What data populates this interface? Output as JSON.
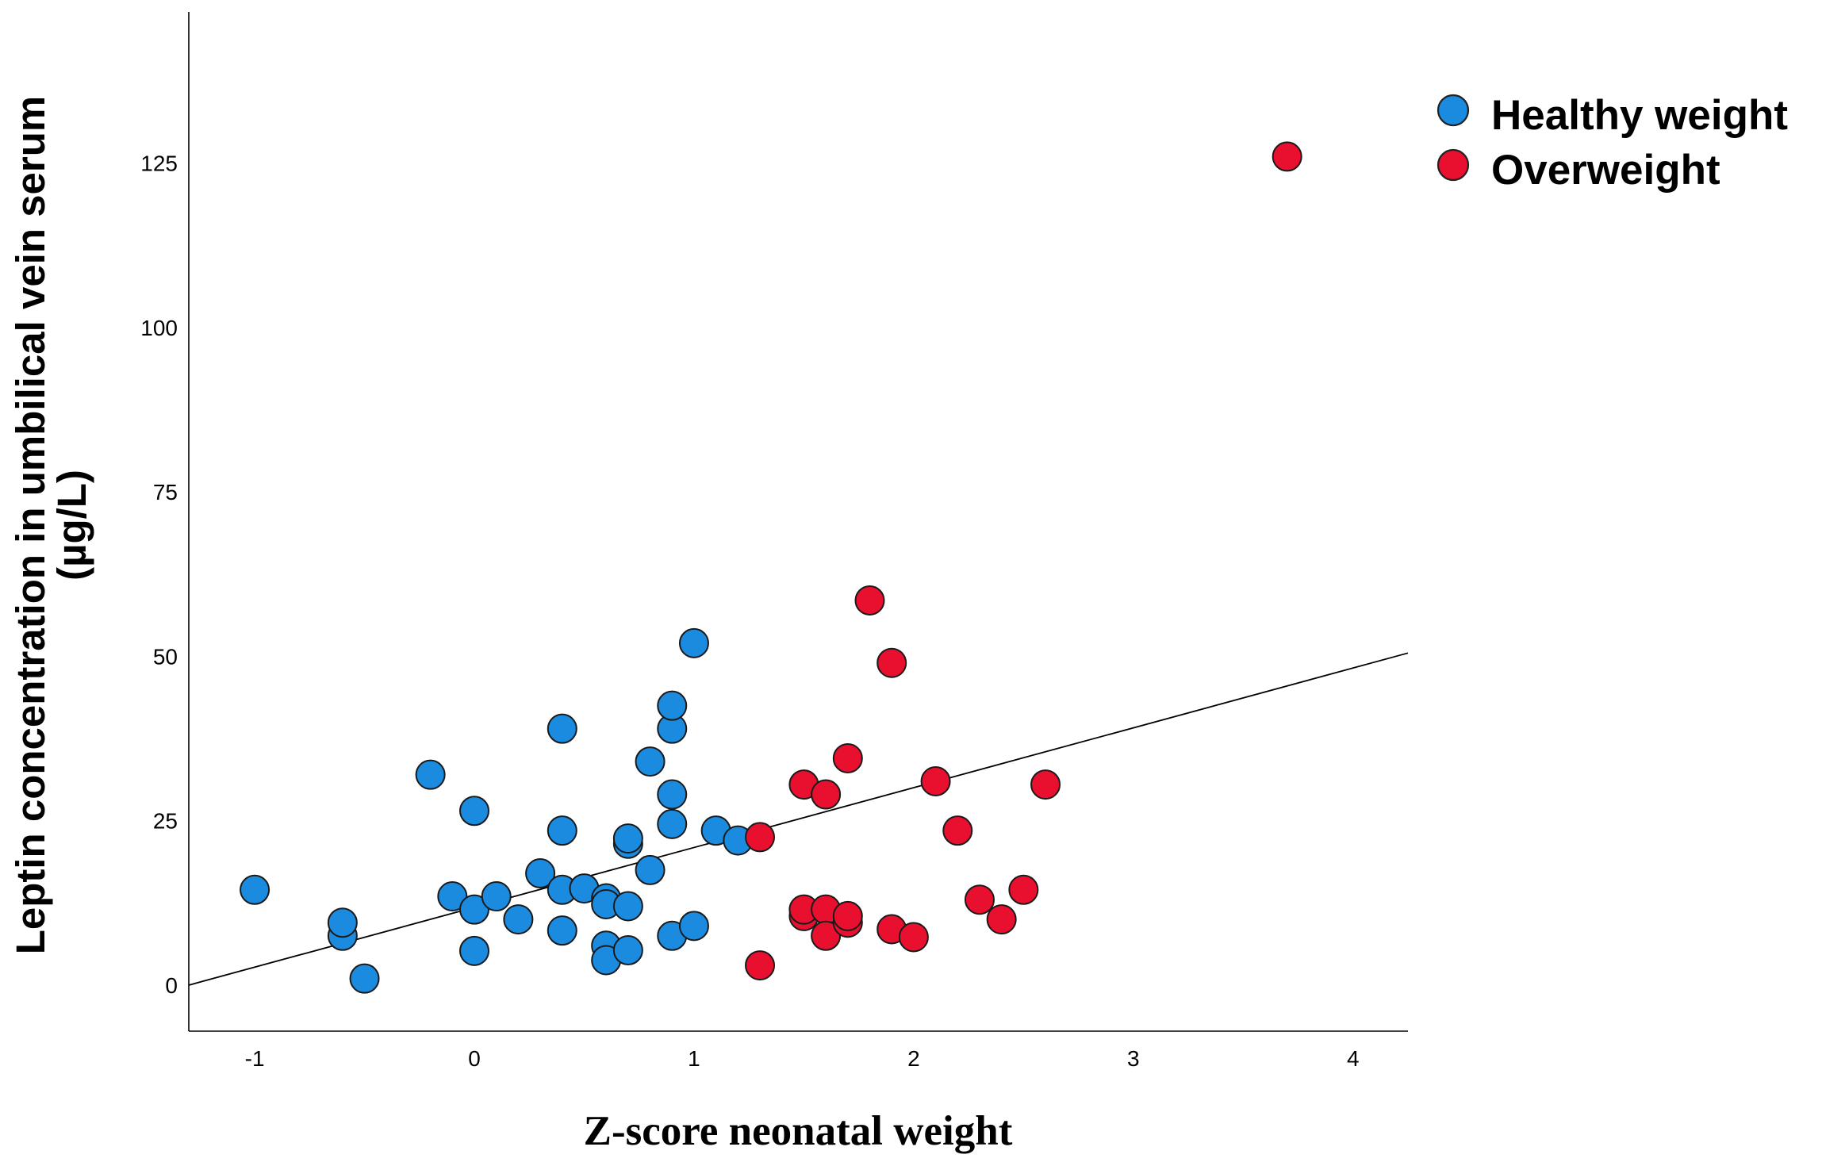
{
  "chart_data": {
    "type": "scatter",
    "title": "",
    "xlabel": "Z-score neonatal weight",
    "ylabel_line1": "Leptin concentration in umbilical vein serum",
    "ylabel_line2": "(µg/L)",
    "xlim": [
      -1.3,
      4.25
    ],
    "ylim": [
      -7,
      148
    ],
    "x_ticks": [
      -1,
      0,
      1,
      2,
      3,
      4
    ],
    "x_tick_labels": [
      "-1",
      "0",
      "1",
      "2",
      "3",
      "4"
    ],
    "y_ticks": [
      0,
      25,
      50,
      75,
      100,
      125
    ],
    "y_tick_labels": [
      "0",
      "25",
      "50",
      "75",
      "100",
      "125"
    ],
    "grid": false,
    "legend_position": "top-right, outside plot",
    "fit_line": {
      "x": [
        -1.3,
        4.25
      ],
      "y": [
        0,
        50.5
      ]
    },
    "series": [
      {
        "name": "Healthy weight",
        "color": "#1b8be0",
        "points": [
          [
            -1.0,
            14.5
          ],
          [
            -0.6,
            7.5
          ],
          [
            -0.6,
            9.5
          ],
          [
            -0.5,
            1.0
          ],
          [
            -0.2,
            32.0
          ],
          [
            -0.1,
            13.5
          ],
          [
            0.0,
            26.5
          ],
          [
            0.0,
            11.5
          ],
          [
            0.0,
            5.2
          ],
          [
            0.1,
            13.5
          ],
          [
            0.2,
            10.0
          ],
          [
            0.3,
            17.0
          ],
          [
            0.4,
            39.0
          ],
          [
            0.4,
            23.5
          ],
          [
            0.4,
            14.5
          ],
          [
            0.4,
            8.3
          ],
          [
            0.5,
            14.7
          ],
          [
            0.6,
            13.2
          ],
          [
            0.6,
            12.3
          ],
          [
            0.6,
            6.0
          ],
          [
            0.6,
            3.8
          ],
          [
            0.7,
            21.5
          ],
          [
            0.7,
            22.3
          ],
          [
            0.7,
            12.0
          ],
          [
            0.7,
            5.3
          ],
          [
            0.8,
            34.0
          ],
          [
            0.8,
            17.5
          ],
          [
            0.9,
            39.0
          ],
          [
            0.9,
            42.5
          ],
          [
            0.9,
            29.0
          ],
          [
            0.9,
            24.5
          ],
          [
            0.9,
            7.5
          ],
          [
            1.0,
            52.0
          ],
          [
            1.0,
            9.0
          ],
          [
            1.1,
            23.5
          ],
          [
            1.2,
            22.0
          ]
        ]
      },
      {
        "name": "Overweight",
        "color": "#e8102e",
        "points": [
          [
            1.3,
            22.5
          ],
          [
            1.3,
            3.0
          ],
          [
            1.5,
            30.5
          ],
          [
            1.5,
            10.5
          ],
          [
            1.5,
            11.5
          ],
          [
            1.6,
            29.0
          ],
          [
            1.6,
            11.5
          ],
          [
            1.6,
            7.5
          ],
          [
            1.7,
            34.5
          ],
          [
            1.7,
            9.5
          ],
          [
            1.7,
            10.5
          ],
          [
            1.8,
            58.5
          ],
          [
            1.9,
            49.0
          ],
          [
            1.9,
            8.5
          ],
          [
            2.0,
            7.3
          ],
          [
            2.1,
            31.0
          ],
          [
            2.2,
            23.5
          ],
          [
            2.3,
            13.0
          ],
          [
            2.4,
            10.0
          ],
          [
            2.5,
            14.5
          ],
          [
            2.6,
            30.5
          ],
          [
            3.7,
            126.0
          ]
        ]
      }
    ]
  }
}
